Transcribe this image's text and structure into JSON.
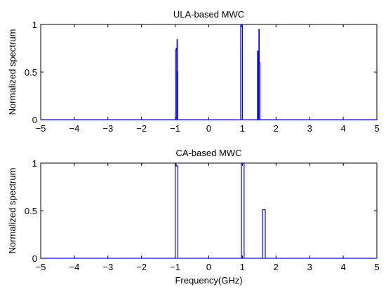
{
  "series_color": "#0000ff",
  "chart_data": [
    {
      "type": "line",
      "title": "ULA-based MWC",
      "xlabel": "",
      "ylabel": "Normalized spectrum",
      "xlim": [
        -5,
        5
      ],
      "ylim": [
        0,
        1
      ],
      "xticks": [
        -5,
        -4,
        -3,
        -2,
        -1,
        0,
        1,
        2,
        3,
        4,
        5
      ],
      "yticks": [
        0,
        0.5,
        1
      ],
      "ytick_labels": [
        "0",
        "0.5",
        "1"
      ],
      "grid": false,
      "series": [
        {
          "x": [
            -5,
            -0.99,
            -0.99,
            -0.97,
            -0.97,
            -0.955,
            -0.955,
            -0.945,
            -0.945,
            -0.935,
            -0.935,
            -0.925,
            -0.925,
            0.95,
            0.95,
            0.96,
            0.96,
            0.99,
            0.99,
            1.0,
            1.0,
            1.45,
            1.45,
            1.47,
            1.47,
            1.49,
            1.49,
            1.5,
            1.5,
            1.52,
            1.52,
            5
          ],
          "y": [
            0,
            0,
            0.73,
            0.73,
            0.75,
            0.75,
            0,
            0,
            0.84,
            0.84,
            0.5,
            0.5,
            0,
            0,
            1,
            1,
            0.98,
            0.98,
            1,
            1,
            0,
            0,
            0.72,
            0.72,
            0,
            0,
            0.95,
            0.95,
            0.6,
            0.6,
            0,
            0
          ]
        }
      ]
    },
    {
      "type": "line",
      "title": "CA-based MWC",
      "xlabel": "Frequency(GHz)",
      "ylabel": "Normalized spectrum",
      "xlim": [
        -5,
        5
      ],
      "ylim": [
        0,
        1
      ],
      "xticks": [
        -5,
        -4,
        -3,
        -2,
        -1,
        0,
        1,
        2,
        3,
        4,
        5
      ],
      "yticks": [
        0,
        0.5,
        1
      ],
      "ytick_labels": [
        "0",
        "0.5",
        "1"
      ],
      "grid": false,
      "series": [
        {
          "x": [
            -5,
            -1.0,
            -1.0,
            -0.97,
            -0.97,
            -0.92,
            -0.92,
            0.97,
            0.97,
            1.05,
            1.05,
            1.6,
            1.6,
            1.68,
            1.68,
            5
          ],
          "y": [
            0,
            0,
            0.99,
            0.99,
            0.97,
            0.97,
            0,
            0,
            1,
            1,
            0,
            0,
            0.51,
            0.51,
            0,
            0
          ]
        }
      ]
    }
  ]
}
